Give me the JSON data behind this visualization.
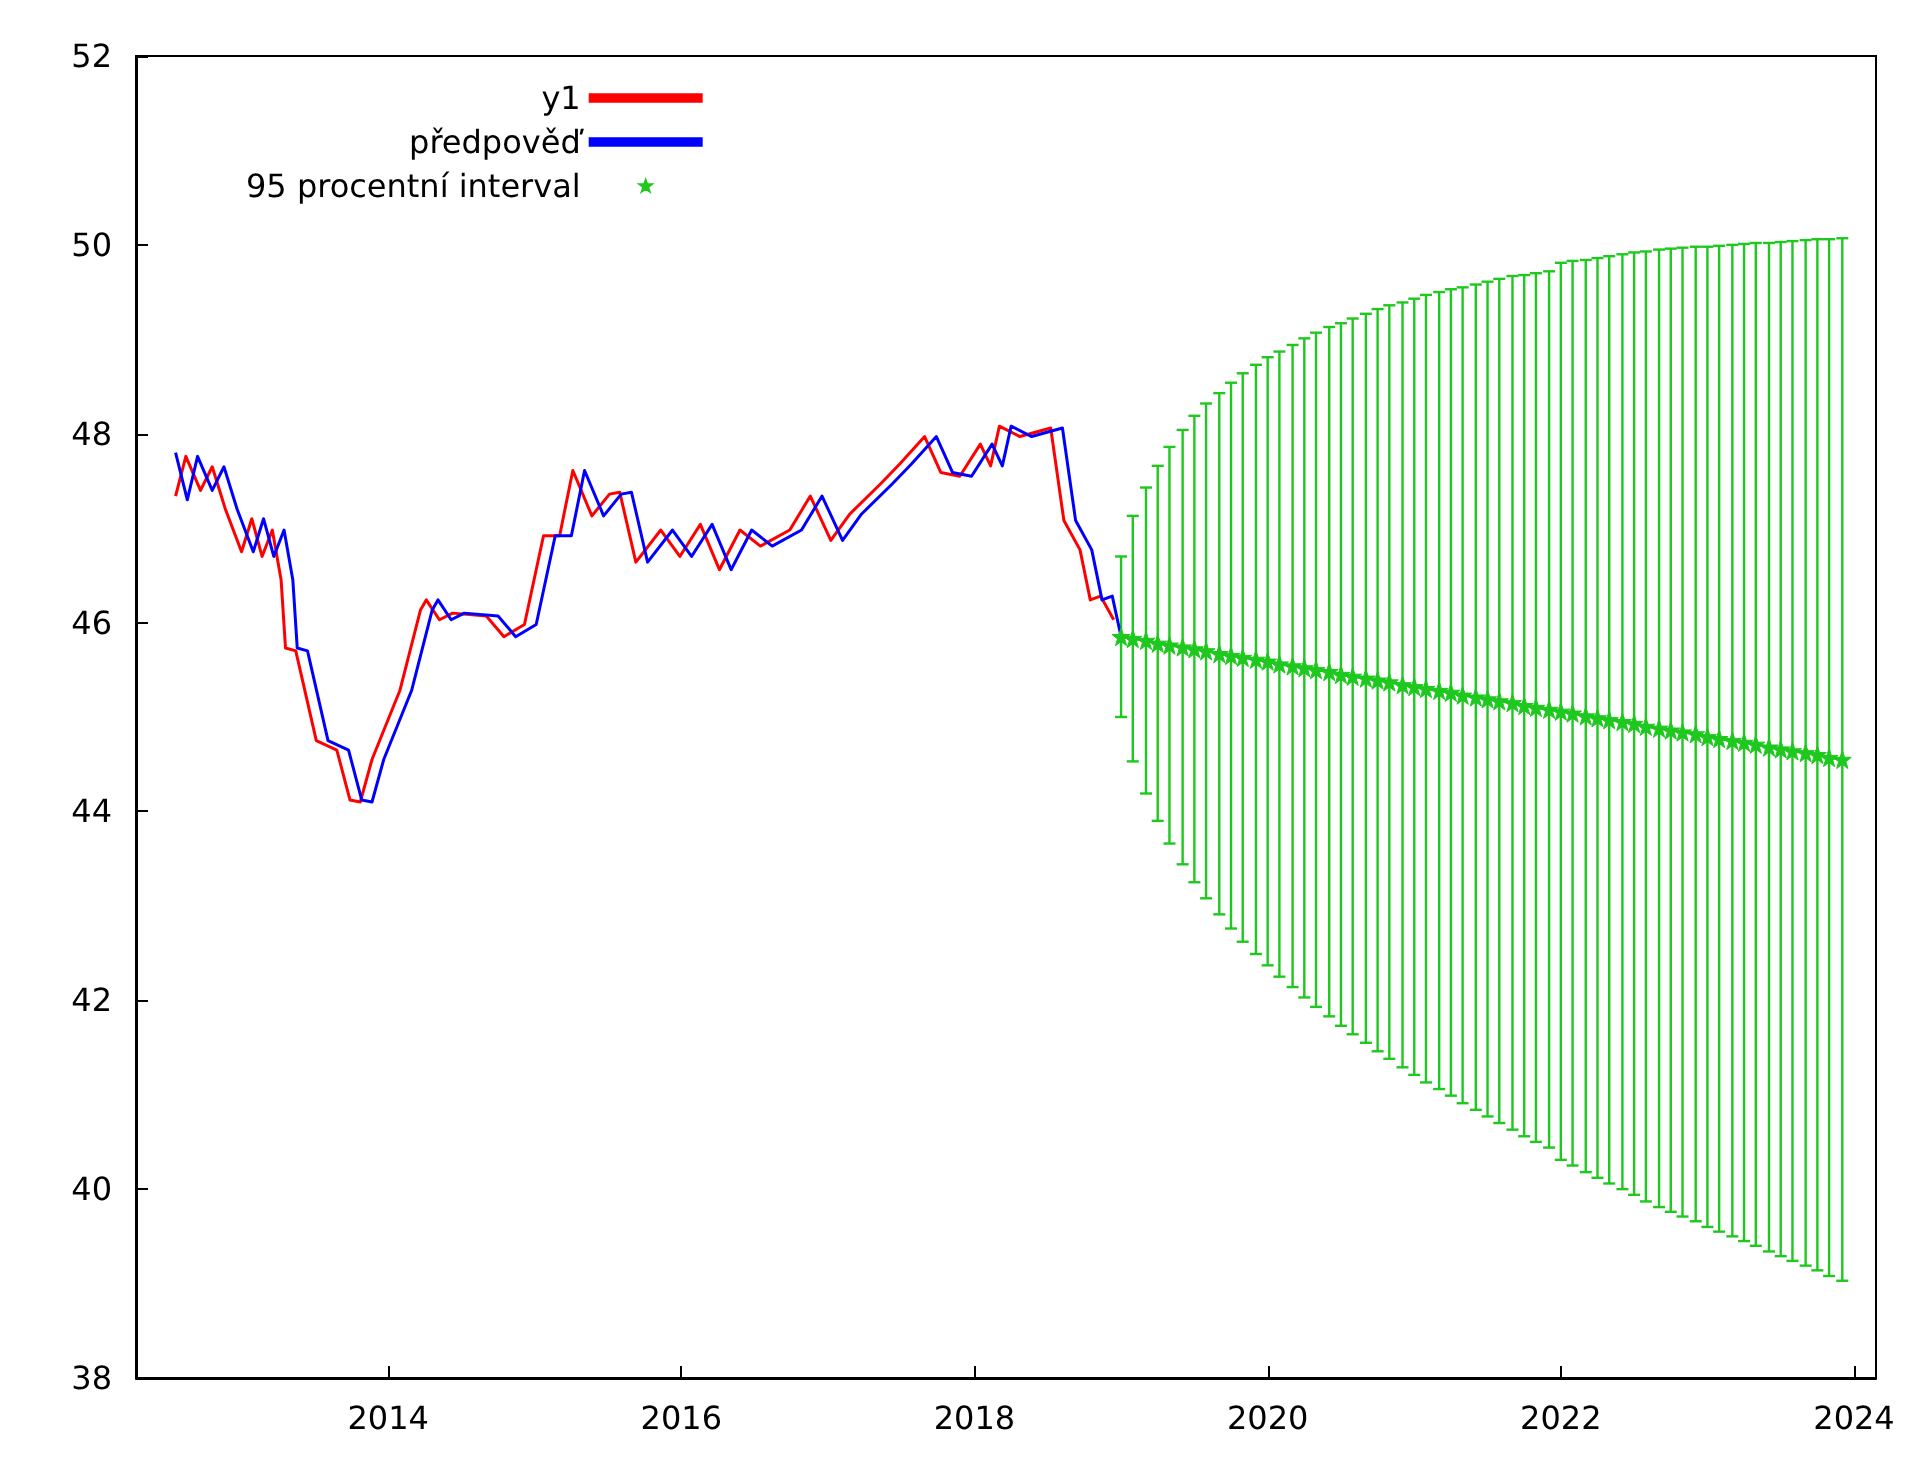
{
  "chart_data": {
    "type": "line",
    "xlim": [
      2012.28,
      2024.15
    ],
    "xticks": [
      2014,
      2016,
      2018,
      2020,
      2022,
      2024
    ],
    "ylim": [
      38,
      52
    ],
    "yticks": [
      38,
      40,
      42,
      44,
      46,
      48,
      50,
      52
    ],
    "grid": false,
    "legend": "top left",
    "line_style": "solid",
    "series": [
      {
        "name": "y1",
        "color": "#ff0000",
        "x": [
          2012.55,
          2012.62,
          2012.72,
          2012.8,
          2012.89,
          2013.0,
          2013.07,
          2013.14,
          2013.21,
          2013.27,
          2013.3,
          2013.37,
          2013.51,
          2013.65,
          2013.74,
          2013.81,
          2013.89,
          2014.08,
          2014.22,
          2014.26,
          2014.35,
          2014.44,
          2014.67,
          2014.79,
          2014.93,
          2015.06,
          2015.17,
          2015.26,
          2015.39,
          2015.51,
          2015.58,
          2015.69,
          2015.86,
          2015.99,
          2016.13,
          2016.26,
          2016.4,
          2016.54,
          2016.74,
          2016.88,
          2017.02,
          2017.15,
          2017.36,
          2017.49,
          2017.66,
          2017.77,
          2017.9,
          2018.04,
          2018.11,
          2018.17,
          2018.31,
          2018.52,
          2018.61,
          2018.72,
          2018.79,
          2018.86,
          2018.95
        ],
        "values": [
          47.34,
          47.76,
          47.4,
          47.65,
          47.2,
          46.75,
          47.1,
          46.7,
          46.98,
          46.45,
          45.73,
          45.7,
          44.75,
          44.65,
          44.12,
          44.1,
          44.55,
          45.28,
          46.13,
          46.24,
          46.03,
          46.1,
          46.07,
          45.85,
          45.98,
          46.92,
          46.92,
          47.61,
          47.13,
          47.36,
          47.38,
          46.64,
          46.98,
          46.7,
          47.04,
          46.56,
          46.98,
          46.81,
          46.98,
          47.34,
          46.87,
          47.15,
          47.47,
          47.68,
          47.97,
          47.59,
          47.55,
          47.89,
          47.66,
          48.08,
          47.97,
          48.06,
          47.08,
          46.77,
          46.24,
          46.28,
          46.03
        ]
      },
      {
        "name": "předpověď",
        "color": "#0000ff",
        "x": [
          2012.55,
          2012.63,
          2012.7,
          2012.8,
          2012.88,
          2012.97,
          2013.08,
          2013.15,
          2013.22,
          2013.29,
          2013.35,
          2013.38,
          2013.45,
          2013.59,
          2013.73,
          2013.82,
          2013.89,
          2013.97,
          2014.16,
          2014.3,
          2014.34,
          2014.43,
          2014.52,
          2014.75,
          2014.87,
          2015.01,
          2015.14,
          2015.25,
          2015.34,
          2015.47,
          2015.59,
          2015.66,
          2015.77,
          2015.94,
          2016.07,
          2016.21,
          2016.34,
          2016.48,
          2016.62,
          2016.82,
          2016.96,
          2017.1,
          2017.23,
          2017.44,
          2017.57,
          2017.74,
          2017.85,
          2017.98,
          2018.12,
          2018.19,
          2018.25,
          2018.39,
          2018.6,
          2018.69,
          2018.8,
          2018.87,
          2018.94,
          2019.0
        ],
        "values": [
          47.8,
          47.3,
          47.76,
          47.4,
          47.65,
          47.2,
          46.75,
          47.1,
          46.7,
          46.98,
          46.45,
          45.73,
          45.7,
          44.75,
          44.65,
          44.12,
          44.1,
          44.55,
          45.28,
          46.13,
          46.24,
          46.03,
          46.1,
          46.07,
          45.85,
          45.98,
          46.92,
          46.92,
          47.61,
          47.13,
          47.36,
          47.38,
          46.64,
          46.98,
          46.7,
          47.04,
          46.56,
          46.98,
          46.81,
          46.98,
          47.34,
          46.87,
          47.15,
          47.47,
          47.68,
          47.97,
          47.59,
          47.55,
          47.89,
          47.66,
          48.08,
          47.97,
          48.06,
          47.08,
          46.77,
          46.24,
          46.28,
          45.85
        ]
      },
      {
        "name": "95 procentní interval",
        "color": "#1ec81e",
        "marker": "star",
        "x": [
          2019.0,
          2019.08,
          2019.17,
          2019.25,
          2019.33,
          2019.42,
          2019.5,
          2019.58,
          2019.67,
          2019.75,
          2019.83,
          2019.92,
          2020.0,
          2020.08,
          2020.17,
          2020.25,
          2020.33,
          2020.42,
          2020.5,
          2020.58,
          2020.67,
          2020.75,
          2020.83,
          2020.92,
          2021.0,
          2021.08,
          2021.17,
          2021.25,
          2021.33,
          2021.42,
          2021.5,
          2021.58,
          2021.67,
          2021.75,
          2021.83,
          2021.92,
          2022.0,
          2022.08,
          2022.17,
          2022.25,
          2022.33,
          2022.42,
          2022.5,
          2022.58,
          2022.67,
          2022.75,
          2022.83,
          2022.92,
          2023.0,
          2023.08,
          2023.17,
          2023.25,
          2023.33,
          2023.42,
          2023.5,
          2023.58,
          2023.67,
          2023.75,
          2023.83,
          2023.92
        ],
        "values": [
          45.85,
          45.83,
          45.81,
          45.78,
          45.76,
          45.74,
          45.72,
          45.7,
          45.67,
          45.65,
          45.63,
          45.61,
          45.59,
          45.56,
          45.54,
          45.52,
          45.5,
          45.48,
          45.45,
          45.43,
          45.41,
          45.39,
          45.37,
          45.34,
          45.32,
          45.3,
          45.28,
          45.26,
          45.23,
          45.21,
          45.19,
          45.17,
          45.15,
          45.12,
          45.1,
          45.08,
          45.06,
          45.04,
          45.01,
          44.99,
          44.97,
          44.95,
          44.93,
          44.9,
          44.88,
          44.86,
          44.84,
          44.82,
          44.79,
          44.77,
          44.75,
          44.73,
          44.71,
          44.68,
          44.66,
          44.64,
          44.62,
          44.6,
          44.57,
          44.55
        ],
        "errors": [
          0.85,
          1.3,
          1.62,
          1.88,
          2.1,
          2.3,
          2.47,
          2.62,
          2.76,
          2.89,
          3.01,
          3.12,
          3.22,
          3.31,
          3.4,
          3.49,
          3.57,
          3.65,
          3.72,
          3.79,
          3.86,
          3.93,
          3.99,
          4.05,
          4.11,
          4.17,
          4.22,
          4.27,
          4.32,
          4.37,
          4.42,
          4.47,
          4.52,
          4.56,
          4.6,
          4.64,
          4.75,
          4.79,
          4.83,
          4.87,
          4.91,
          4.95,
          4.99,
          5.03,
          5.07,
          5.1,
          5.13,
          5.16,
          5.19,
          5.22,
          5.25,
          5.28,
          5.31,
          5.34,
          5.37,
          5.4,
          5.43,
          5.46,
          5.49,
          5.52
        ]
      }
    ]
  }
}
